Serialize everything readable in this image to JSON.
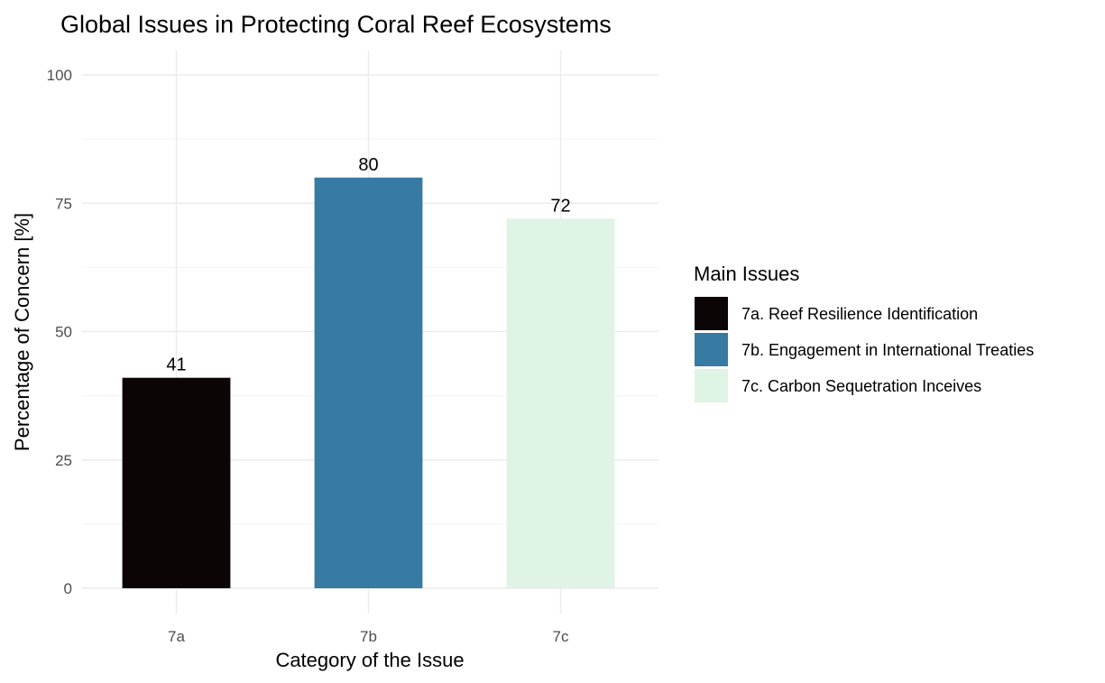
{
  "chart_data": {
    "type": "bar",
    "title": "Global Issues in Protecting Coral Reef Ecosystems",
    "xlabel": "Category of the Issue",
    "ylabel": "Percentage of Concern [%]",
    "categories": [
      "7a",
      "7b",
      "7c"
    ],
    "values": [
      41,
      80,
      72
    ],
    "data_labels": [
      "41",
      "80",
      "72"
    ],
    "ylim": [
      0,
      100
    ],
    "yticks": [
      0,
      25,
      50,
      75,
      100
    ],
    "ytick_labels": [
      "0",
      "25",
      "50",
      "75",
      "100"
    ],
    "grid": true,
    "legend": {
      "title": "Main Issues",
      "placement": "right",
      "entries": [
        "7a. Reef Resilience Identification",
        "7b. Engagement in International Treaties",
        "7c. Carbon Sequetration Inceives"
      ]
    },
    "colors": [
      "#0b0505",
      "#377ba3",
      "#dff4e5"
    ]
  }
}
